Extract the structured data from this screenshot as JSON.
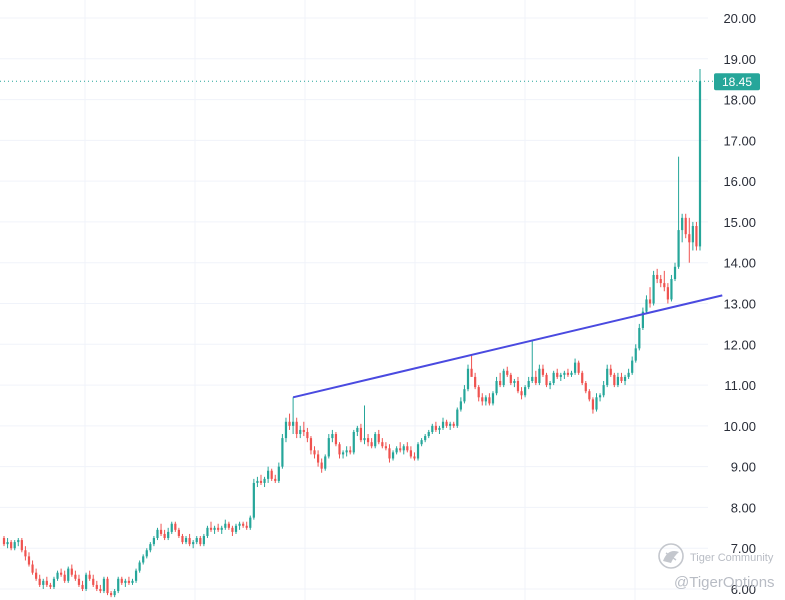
{
  "chart_data": {
    "type": "candlestick",
    "title": "",
    "xlabel": "",
    "ylabel": "",
    "ylim": [
      6.0,
      20.0
    ],
    "y_ticks": [
      "20.00",
      "19.00",
      "18.00",
      "17.00",
      "16.00",
      "15.00",
      "14.00",
      "13.00",
      "12.00",
      "11.00",
      "10.00",
      "9.00",
      "8.00",
      "7.00",
      "6.00"
    ],
    "grid": true,
    "last_price": 18.45,
    "last_price_label": "18.45",
    "colors": {
      "up": "#26a69a",
      "down": "#ef5350",
      "trendline": "#4a4ae0",
      "price_line": "#26a69a"
    },
    "trendline": [
      {
        "bar": 81,
        "price": 10.7
      },
      {
        "bar": 199,
        "price": 13.2
      }
    ],
    "ohlc": [
      [
        7.25,
        7.3,
        7.05,
        7.1
      ],
      [
        7.1,
        7.25,
        7.0,
        7.15
      ],
      [
        7.15,
        7.2,
        6.95,
        7.0
      ],
      [
        7.0,
        7.2,
        6.95,
        7.15
      ],
      [
        7.15,
        7.25,
        7.05,
        7.2
      ],
      [
        7.2,
        7.25,
        6.9,
        6.95
      ],
      [
        6.95,
        7.05,
        6.7,
        6.8
      ],
      [
        6.8,
        6.9,
        6.55,
        6.6
      ],
      [
        6.6,
        6.7,
        6.35,
        6.4
      ],
      [
        6.4,
        6.5,
        6.2,
        6.25
      ],
      [
        6.25,
        6.35,
        6.05,
        6.1
      ],
      [
        6.1,
        6.25,
        6.0,
        6.2
      ],
      [
        6.2,
        6.3,
        6.05,
        6.1
      ],
      [
        6.1,
        6.15,
        6.0,
        6.05
      ],
      [
        6.05,
        6.3,
        6.0,
        6.25
      ],
      [
        6.25,
        6.45,
        6.2,
        6.4
      ],
      [
        6.4,
        6.5,
        6.3,
        6.35
      ],
      [
        6.35,
        6.45,
        6.15,
        6.2
      ],
      [
        6.2,
        6.55,
        6.15,
        6.5
      ],
      [
        6.5,
        6.6,
        6.3,
        6.35
      ],
      [
        6.35,
        6.45,
        6.2,
        6.25
      ],
      [
        6.25,
        6.35,
        6.05,
        6.1
      ],
      [
        6.1,
        6.2,
        5.95,
        6.0
      ],
      [
        6.0,
        6.4,
        5.95,
        6.35
      ],
      [
        6.35,
        6.45,
        6.2,
        6.25
      ],
      [
        6.25,
        6.35,
        6.05,
        6.1
      ],
      [
        6.1,
        6.2,
        5.95,
        6.0
      ],
      [
        6.0,
        6.1,
        5.9,
        5.95
      ],
      [
        5.95,
        6.3,
        5.9,
        6.25
      ],
      [
        6.25,
        6.3,
        5.85,
        5.9
      ],
      [
        5.9,
        5.95,
        5.8,
        5.85
      ],
      [
        5.85,
        6.0,
        5.8,
        5.95
      ],
      [
        5.95,
        6.3,
        5.9,
        6.25
      ],
      [
        6.25,
        6.3,
        6.1,
        6.15
      ],
      [
        6.15,
        6.25,
        6.05,
        6.2
      ],
      [
        6.2,
        6.3,
        6.1,
        6.15
      ],
      [
        6.15,
        6.25,
        6.1,
        6.2
      ],
      [
        6.2,
        6.5,
        6.15,
        6.45
      ],
      [
        6.45,
        6.7,
        6.4,
        6.65
      ],
      [
        6.65,
        6.85,
        6.6,
        6.8
      ],
      [
        6.8,
        7.0,
        6.75,
        6.95
      ],
      [
        6.95,
        7.15,
        6.9,
        7.1
      ],
      [
        7.1,
        7.3,
        7.05,
        7.25
      ],
      [
        7.25,
        7.5,
        7.2,
        7.45
      ],
      [
        7.45,
        7.6,
        7.3,
        7.35
      ],
      [
        7.35,
        7.45,
        7.2,
        7.25
      ],
      [
        7.25,
        7.5,
        7.2,
        7.4
      ],
      [
        7.4,
        7.65,
        7.35,
        7.6
      ],
      [
        7.6,
        7.65,
        7.4,
        7.45
      ],
      [
        7.45,
        7.5,
        7.25,
        7.3
      ],
      [
        7.3,
        7.35,
        7.1,
        7.15
      ],
      [
        7.15,
        7.3,
        7.1,
        7.25
      ],
      [
        7.25,
        7.35,
        7.05,
        7.1
      ],
      [
        7.1,
        7.2,
        7.0,
        7.15
      ],
      [
        7.15,
        7.3,
        7.1,
        7.25
      ],
      [
        7.25,
        7.3,
        7.05,
        7.1
      ],
      [
        7.1,
        7.35,
        7.05,
        7.3
      ],
      [
        7.3,
        7.55,
        7.25,
        7.5
      ],
      [
        7.5,
        7.65,
        7.4,
        7.45
      ],
      [
        7.45,
        7.55,
        7.35,
        7.5
      ],
      [
        7.5,
        7.6,
        7.4,
        7.45
      ],
      [
        7.45,
        7.55,
        7.35,
        7.5
      ],
      [
        7.5,
        7.7,
        7.45,
        7.6
      ],
      [
        7.6,
        7.65,
        7.45,
        7.5
      ],
      [
        7.5,
        7.55,
        7.3,
        7.4
      ],
      [
        7.4,
        7.6,
        7.35,
        7.55
      ],
      [
        7.55,
        7.65,
        7.45,
        7.6
      ],
      [
        7.6,
        7.65,
        7.5,
        7.55
      ],
      [
        7.55,
        7.65,
        7.45,
        7.5
      ],
      [
        7.5,
        7.8,
        7.45,
        7.75
      ],
      [
        7.75,
        8.7,
        7.7,
        8.6
      ],
      [
        8.6,
        8.75,
        8.5,
        8.65
      ],
      [
        8.65,
        8.8,
        8.55,
        8.6
      ],
      [
        8.6,
        8.75,
        8.5,
        8.7
      ],
      [
        8.7,
        9.0,
        8.6,
        8.9
      ],
      [
        8.9,
        8.95,
        8.65,
        8.7
      ],
      [
        8.7,
        8.8,
        8.6,
        8.65
      ],
      [
        8.65,
        9.1,
        8.6,
        9.0
      ],
      [
        9.0,
        9.8,
        8.95,
        9.7
      ],
      [
        9.7,
        10.2,
        9.6,
        10.1
      ],
      [
        10.1,
        10.3,
        9.9,
        10.0
      ],
      [
        10.0,
        10.7,
        9.8,
        10.1
      ],
      [
        10.1,
        10.2,
        9.7,
        9.8
      ],
      [
        9.8,
        10.0,
        9.7,
        9.9
      ],
      [
        9.9,
        10.1,
        9.75,
        9.85
      ],
      [
        9.85,
        9.95,
        9.6,
        9.7
      ],
      [
        9.7,
        9.75,
        9.3,
        9.4
      ],
      [
        9.4,
        9.5,
        9.2,
        9.3
      ],
      [
        9.3,
        9.4,
        9.0,
        9.1
      ],
      [
        9.1,
        9.2,
        8.85,
        8.95
      ],
      [
        8.95,
        9.3,
        8.9,
        9.25
      ],
      [
        9.25,
        9.8,
        9.2,
        9.7
      ],
      [
        9.7,
        9.9,
        9.6,
        9.8
      ],
      [
        9.8,
        9.85,
        9.5,
        9.55
      ],
      [
        9.55,
        9.6,
        9.2,
        9.3
      ],
      [
        9.3,
        9.4,
        9.2,
        9.35
      ],
      [
        9.35,
        9.5,
        9.25,
        9.4
      ],
      [
        9.4,
        9.5,
        9.3,
        9.35
      ],
      [
        9.35,
        9.9,
        9.3,
        9.85
      ],
      [
        9.85,
        10.0,
        9.75,
        9.95
      ],
      [
        9.95,
        10.05,
        9.6,
        9.65
      ],
      [
        9.65,
        10.5,
        9.55,
        9.7
      ],
      [
        9.7,
        9.8,
        9.5,
        9.6
      ],
      [
        9.6,
        9.7,
        9.45,
        9.5
      ],
      [
        9.5,
        9.85,
        9.45,
        9.8
      ],
      [
        9.8,
        9.9,
        9.55,
        9.6
      ],
      [
        9.6,
        9.7,
        9.45,
        9.5
      ],
      [
        9.5,
        9.6,
        9.4,
        9.45
      ],
      [
        9.45,
        9.55,
        9.1,
        9.2
      ],
      [
        9.2,
        9.4,
        9.15,
        9.35
      ],
      [
        9.35,
        9.5,
        9.3,
        9.45
      ],
      [
        9.45,
        9.6,
        9.35,
        9.4
      ],
      [
        9.4,
        9.55,
        9.3,
        9.5
      ],
      [
        9.5,
        9.6,
        9.35,
        9.4
      ],
      [
        9.4,
        9.5,
        9.2,
        9.25
      ],
      [
        9.25,
        9.35,
        9.15,
        9.2
      ],
      [
        9.2,
        9.6,
        9.15,
        9.55
      ],
      [
        9.55,
        9.7,
        9.5,
        9.65
      ],
      [
        9.65,
        9.8,
        9.6,
        9.75
      ],
      [
        9.75,
        9.9,
        9.7,
        9.85
      ],
      [
        9.85,
        10.05,
        9.8,
        10.0
      ],
      [
        10.0,
        10.1,
        9.85,
        9.9
      ],
      [
        9.9,
        10.0,
        9.8,
        9.95
      ],
      [
        9.95,
        10.2,
        9.9,
        10.1
      ],
      [
        10.1,
        10.15,
        9.95,
        10.0
      ],
      [
        10.0,
        10.1,
        9.9,
        10.05
      ],
      [
        10.05,
        10.1,
        9.95,
        10.0
      ],
      [
        10.0,
        10.45,
        9.95,
        10.4
      ],
      [
        10.4,
        10.7,
        10.35,
        10.6
      ],
      [
        10.6,
        11.0,
        10.55,
        10.9
      ],
      [
        10.9,
        11.5,
        10.85,
        11.4
      ],
      [
        11.4,
        11.75,
        11.3,
        11.2
      ],
      [
        11.2,
        11.3,
        10.9,
        10.95
      ],
      [
        10.95,
        11.0,
        10.6,
        10.7
      ],
      [
        10.7,
        10.8,
        10.5,
        10.6
      ],
      [
        10.6,
        10.75,
        10.5,
        10.7
      ],
      [
        10.7,
        10.8,
        10.5,
        10.55
      ],
      [
        10.55,
        10.85,
        10.5,
        10.8
      ],
      [
        10.8,
        11.2,
        10.75,
        11.1
      ],
      [
        11.1,
        11.3,
        10.95,
        11.0
      ],
      [
        11.0,
        11.4,
        10.95,
        11.35
      ],
      [
        11.35,
        11.45,
        11.2,
        11.25
      ],
      [
        11.25,
        11.3,
        11.0,
        11.05
      ],
      [
        11.05,
        11.15,
        10.95,
        11.1
      ],
      [
        11.1,
        11.2,
        10.8,
        10.85
      ],
      [
        10.85,
        10.95,
        10.65,
        10.75
      ],
      [
        10.75,
        11.0,
        10.7,
        10.95
      ],
      [
        10.95,
        11.2,
        10.9,
        11.1
      ],
      [
        11.1,
        12.1,
        11.05,
        11.2
      ],
      [
        11.2,
        11.35,
        11.0,
        11.05
      ],
      [
        11.05,
        11.5,
        11.0,
        11.4
      ],
      [
        11.4,
        11.5,
        11.2,
        11.25
      ],
      [
        11.25,
        11.3,
        10.95,
        11.0
      ],
      [
        11.0,
        11.1,
        10.9,
        11.05
      ],
      [
        11.05,
        11.35,
        11.0,
        11.3
      ],
      [
        11.3,
        11.4,
        11.15,
        11.2
      ],
      [
        11.2,
        11.3,
        11.1,
        11.25
      ],
      [
        11.25,
        11.35,
        11.15,
        11.3
      ],
      [
        11.3,
        11.4,
        11.2,
        11.25
      ],
      [
        11.25,
        11.35,
        11.2,
        11.3
      ],
      [
        11.3,
        11.65,
        11.25,
        11.55
      ],
      [
        11.55,
        11.6,
        11.25,
        11.3
      ],
      [
        11.3,
        11.35,
        11.0,
        11.05
      ],
      [
        11.05,
        11.1,
        10.8,
        10.85
      ],
      [
        10.85,
        10.9,
        10.6,
        10.65
      ],
      [
        10.65,
        10.7,
        10.3,
        10.4
      ],
      [
        10.4,
        10.8,
        10.35,
        10.7
      ],
      [
        10.7,
        10.8,
        10.6,
        10.75
      ],
      [
        10.75,
        11.1,
        10.7,
        11.0
      ],
      [
        11.0,
        11.5,
        10.95,
        11.4
      ],
      [
        11.4,
        11.5,
        11.2,
        11.25
      ],
      [
        11.25,
        11.3,
        10.95,
        11.0
      ],
      [
        11.0,
        11.3,
        10.95,
        11.2
      ],
      [
        11.2,
        11.3,
        11.05,
        11.1
      ],
      [
        11.1,
        11.25,
        11.0,
        11.2
      ],
      [
        11.2,
        11.4,
        11.15,
        11.3
      ],
      [
        11.3,
        11.7,
        11.25,
        11.6
      ],
      [
        11.6,
        12.0,
        11.55,
        11.9
      ],
      [
        11.9,
        12.5,
        11.85,
        12.4
      ],
      [
        12.4,
        12.9,
        12.35,
        12.8
      ],
      [
        12.8,
        13.2,
        12.75,
        13.1
      ],
      [
        13.1,
        13.4,
        12.9,
        13.0
      ],
      [
        13.0,
        13.8,
        12.95,
        13.7
      ],
      [
        13.7,
        13.85,
        13.5,
        13.6
      ],
      [
        13.6,
        13.7,
        13.4,
        13.5
      ],
      [
        13.5,
        13.8,
        13.3,
        13.4
      ],
      [
        13.4,
        13.5,
        13.0,
        13.1
      ],
      [
        13.1,
        13.7,
        13.05,
        13.6
      ],
      [
        13.6,
        14.0,
        13.55,
        13.9
      ],
      [
        13.9,
        16.6,
        13.85,
        14.8
      ],
      [
        14.8,
        15.2,
        14.5,
        15.1
      ],
      [
        15.1,
        15.2,
        14.6,
        14.7
      ],
      [
        14.7,
        15.1,
        14.0,
        14.5
      ],
      [
        14.5,
        15.0,
        14.3,
        14.9
      ],
      [
        14.9,
        15.0,
        14.3,
        14.4
      ],
      [
        14.4,
        18.75,
        14.3,
        18.45
      ]
    ]
  },
  "watermark": {
    "brand": "Tiger Community",
    "handle": "@TigerOptions",
    "icon": "tiger-logo-icon"
  }
}
